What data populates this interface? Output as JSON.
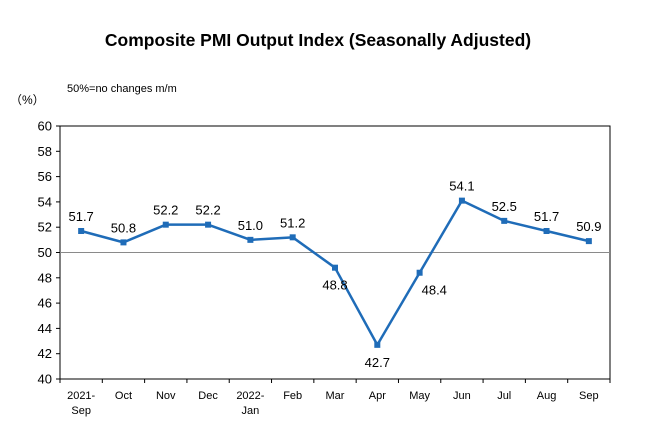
{
  "chart_data": {
    "type": "line",
    "title": "Composite PMI Output Index (Seasonally Adjusted)",
    "note": "50%=no changes m/m",
    "unit_label": "（%）",
    "categories": [
      [
        "2021-",
        "Sep"
      ],
      [
        "Oct"
      ],
      [
        "Nov"
      ],
      [
        "Dec"
      ],
      [
        "2022-",
        "Jan"
      ],
      [
        "Feb"
      ],
      [
        "Mar"
      ],
      [
        "Apr"
      ],
      [
        "May"
      ],
      [
        "Jun"
      ],
      [
        "Jul"
      ],
      [
        "Aug"
      ],
      [
        "Sep"
      ]
    ],
    "series": [
      {
        "values": [
          51.7,
          50.8,
          52.2,
          52.2,
          51.0,
          51.2,
          48.8,
          42.7,
          48.4,
          54.1,
          52.5,
          51.7,
          50.9
        ]
      }
    ],
    "data_labels": [
      "51.7",
      "50.8",
      "52.2",
      "52.2",
      "51.0",
      "51.2",
      "48.8",
      "42.7",
      "48.4",
      "54.1",
      "52.5",
      "51.7",
      "50.9"
    ],
    "label_positions": [
      "above",
      "above",
      "above",
      "above",
      "above",
      "above",
      "below",
      "below",
      "right",
      "above",
      "above",
      "above",
      "above"
    ],
    "ylim": [
      40,
      60
    ],
    "ytick_step": 2,
    "reference_line": 50,
    "grid": false,
    "legend": "none",
    "line_color": "#1F6CB8",
    "reference_line_color": "#8A8A8A",
    "axis_color": "#000000"
  }
}
